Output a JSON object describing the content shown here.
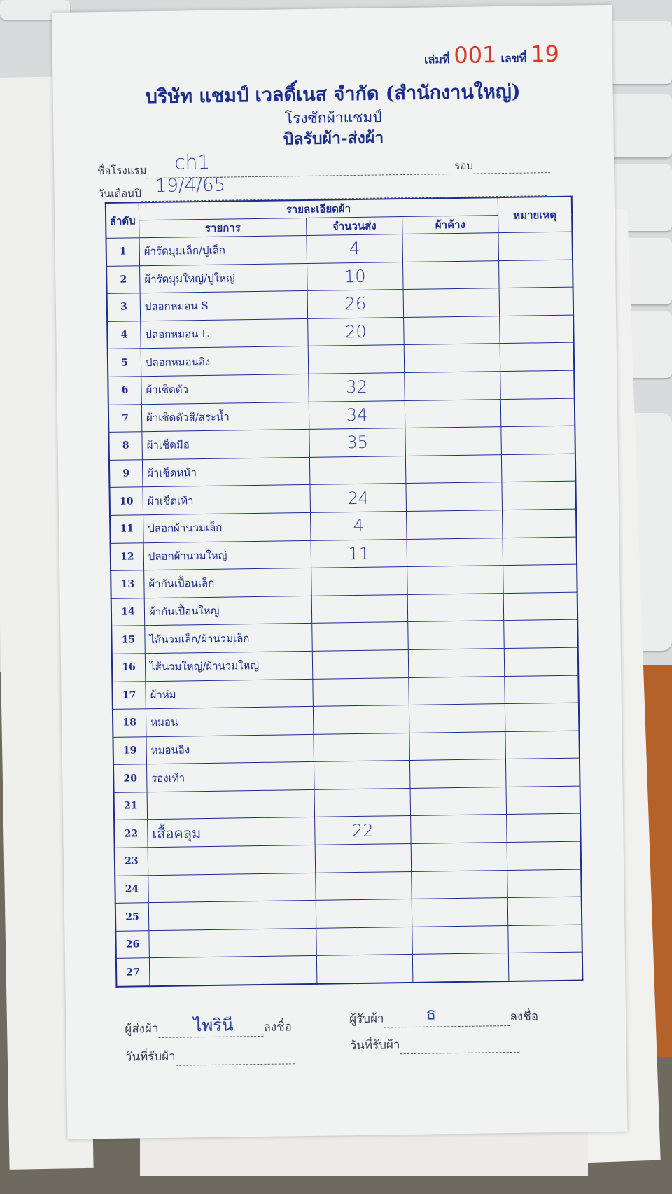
{
  "header": {
    "book_label": "เล่มที่",
    "book_no": "001",
    "number_label": "เลขที่",
    "number": "19",
    "company": "บริษัท แชมป์ เวลดิ์เนส จำกัด (สำนักงานใหญ่)",
    "factory": "โรงซักผ้าแชมป์",
    "doc_title": "บิลรับผ้า-ส่งผ้า"
  },
  "fields": {
    "hotel_label": "ชื่อโรงแรม",
    "hotel_value": "ch1",
    "round_label": "รอบ",
    "round_value": "",
    "date_label": "วันเดือนปี",
    "date_value": "19/4/65"
  },
  "table": {
    "headers": {
      "no": "ลำดับ",
      "details": "รายละเอียดผ้า",
      "item": "รายการ",
      "qty": "จำนวนส่ง",
      "outstanding": "ผ้าค้าง",
      "remark": "หมายเหตุ"
    },
    "rows": [
      {
        "no": "1",
        "item": "ผ้ารัดมุมเล็ก/ปูเล็ก",
        "qty": "4"
      },
      {
        "no": "2",
        "item": "ผ้ารัดมุมใหญ่/ปูใหญ่",
        "qty": "10"
      },
      {
        "no": "3",
        "item": "ปลอกหมอน S",
        "qty": "26"
      },
      {
        "no": "4",
        "item": "ปลอกหมอน L",
        "qty": "20"
      },
      {
        "no": "5",
        "item": "ปลอกหมอนอิง",
        "qty": ""
      },
      {
        "no": "6",
        "item": "ผ้าเช็ดตัว",
        "qty": "32"
      },
      {
        "no": "7",
        "item": "ผ้าเช็ดตัวสี/สระน้ำ",
        "qty": "34"
      },
      {
        "no": "8",
        "item": "ผ้าเช็ดมือ",
        "qty": "35"
      },
      {
        "no": "9",
        "item": "ผ้าเช็ดหน้า",
        "qty": ""
      },
      {
        "no": "10",
        "item": "ผ้าเช็ดเท้า",
        "qty": "24"
      },
      {
        "no": "11",
        "item": "ปลอกผ้านวมเล็ก",
        "qty": "4"
      },
      {
        "no": "12",
        "item": "ปลอกผ้านวมใหญ่",
        "qty": "11"
      },
      {
        "no": "13",
        "item": "ผ้ากันเปื้อนเล็ก",
        "qty": ""
      },
      {
        "no": "14",
        "item": "ผ้ากันเปื้อนใหญ่",
        "qty": ""
      },
      {
        "no": "15",
        "item": "ไส้นวมเล็ก/ผ้านวมเล็ก",
        "qty": ""
      },
      {
        "no": "16",
        "item": "ไส้นวมใหญ่/ผ้านวมใหญ่",
        "qty": ""
      },
      {
        "no": "17",
        "item": "ผ้าห่ม",
        "qty": ""
      },
      {
        "no": "18",
        "item": "หมอน",
        "qty": ""
      },
      {
        "no": "19",
        "item": "หมอนอิง",
        "qty": ""
      },
      {
        "no": "20",
        "item": "รองเท้า",
        "qty": ""
      },
      {
        "no": "21",
        "item": "",
        "qty": ""
      },
      {
        "no": "22",
        "item": "เสื้อคลุม",
        "qty": "22"
      },
      {
        "no": "23",
        "item": "",
        "qty": ""
      },
      {
        "no": "24",
        "item": "",
        "qty": ""
      },
      {
        "no": "25",
        "item": "",
        "qty": ""
      },
      {
        "no": "26",
        "item": "",
        "qty": ""
      },
      {
        "no": "27",
        "item": "",
        "qty": ""
      }
    ]
  },
  "footer": {
    "sender_label": "ผู้ส่งผ้า",
    "sender_value": "ไพรินี",
    "sign_label": "ลงชื่อ",
    "receiver_label": "ผู้รับผ้า",
    "receiver_value": "ธ",
    "receive_date_label": "วันที่รับผ้า"
  }
}
